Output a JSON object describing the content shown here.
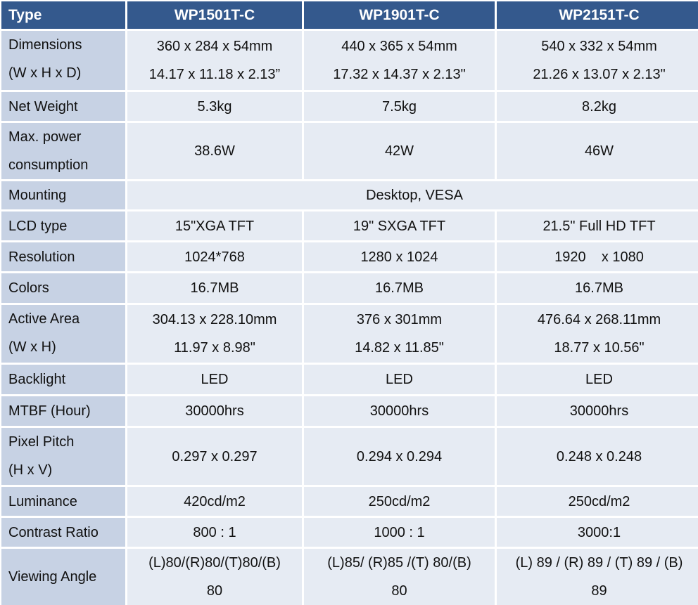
{
  "header": [
    "Type",
    "WP1501T-C",
    "WP1901T-C",
    "WP2151T-C"
  ],
  "rows": [
    {
      "label": [
        "Dimensions",
        "(W x H x D)"
      ],
      "values": [
        [
          "360 x 284 x 54mm",
          "14.17 x 11.18 x 2.13”"
        ],
        [
          "440 x 365 x 54mm",
          "17.32 x 14.37 x 2.13\""
        ],
        [
          "540 x 332 x 54mm",
          "21.26 x 13.07 x 2.13\""
        ]
      ]
    },
    {
      "label": [
        "Net Weight"
      ],
      "values": [
        [
          "5.3kg"
        ],
        [
          "7.5kg"
        ],
        [
          "8.2kg"
        ]
      ]
    },
    {
      "label": [
        "Max. power",
        "consumption"
      ],
      "values": [
        [
          "38.6W"
        ],
        [
          "42W"
        ],
        [
          "46W"
        ]
      ]
    },
    {
      "label": [
        "Mounting"
      ],
      "values": [
        [
          "Desktop, VESA"
        ]
      ]
    },
    {
      "label": [
        "LCD type"
      ],
      "values": [
        [
          "15\"XGA TFT"
        ],
        [
          "19\" SXGA TFT"
        ],
        [
          "21.5\" Full HD TFT"
        ]
      ]
    },
    {
      "label": [
        "Resolution"
      ],
      "values": [
        [
          "1024*768"
        ],
        [
          "1280 x 1024"
        ],
        [
          "1920    x 1080"
        ]
      ]
    },
    {
      "label": [
        "Colors"
      ],
      "values": [
        [
          "16.7MB"
        ],
        [
          "16.7MB"
        ],
        [
          "16.7MB"
        ]
      ]
    },
    {
      "label": [
        "Active Area",
        "(W x H)"
      ],
      "values": [
        [
          "304.13 x 228.10mm",
          "11.97 x 8.98\""
        ],
        [
          "376 x 301mm",
          "14.82 x 11.85\""
        ],
        [
          "476.64 x 268.11mm",
          "18.77 x 10.56\""
        ]
      ]
    },
    {
      "label": [
        "Backlight"
      ],
      "values": [
        [
          "LED"
        ],
        [
          "LED"
        ],
        [
          "LED"
        ]
      ]
    },
    {
      "label": [
        "MTBF (Hour)"
      ],
      "values": [
        [
          "30000hrs"
        ],
        [
          "30000hrs"
        ],
        [
          "30000hrs"
        ]
      ]
    },
    {
      "label": [
        "Pixel Pitch",
        "(H x V)"
      ],
      "values": [
        [
          "0.297 x 0.297"
        ],
        [
          "0.294 x 0.294"
        ],
        [
          "0.248 x 0.248"
        ]
      ]
    },
    {
      "label": [
        "Luminance"
      ],
      "values": [
        [
          "420cd/m2"
        ],
        [
          "250cd/m2"
        ],
        [
          "250cd/m2"
        ]
      ]
    },
    {
      "label": [
        "Contrast Ratio"
      ],
      "values": [
        [
          "800 : 1"
        ],
        [
          "1000 : 1"
        ],
        [
          "3000:1"
        ]
      ]
    },
    {
      "label": [
        "Viewing Angle"
      ],
      "values": [
        [
          "(L)80/(R)80/(T)80/(B)",
          "80"
        ],
        [
          "(L)85/ (R)85 /(T) 80/(B)",
          "80"
        ],
        [
          "(L) 89 / (R) 89 / (T) 89 / (B)",
          "89"
        ]
      ]
    }
  ]
}
